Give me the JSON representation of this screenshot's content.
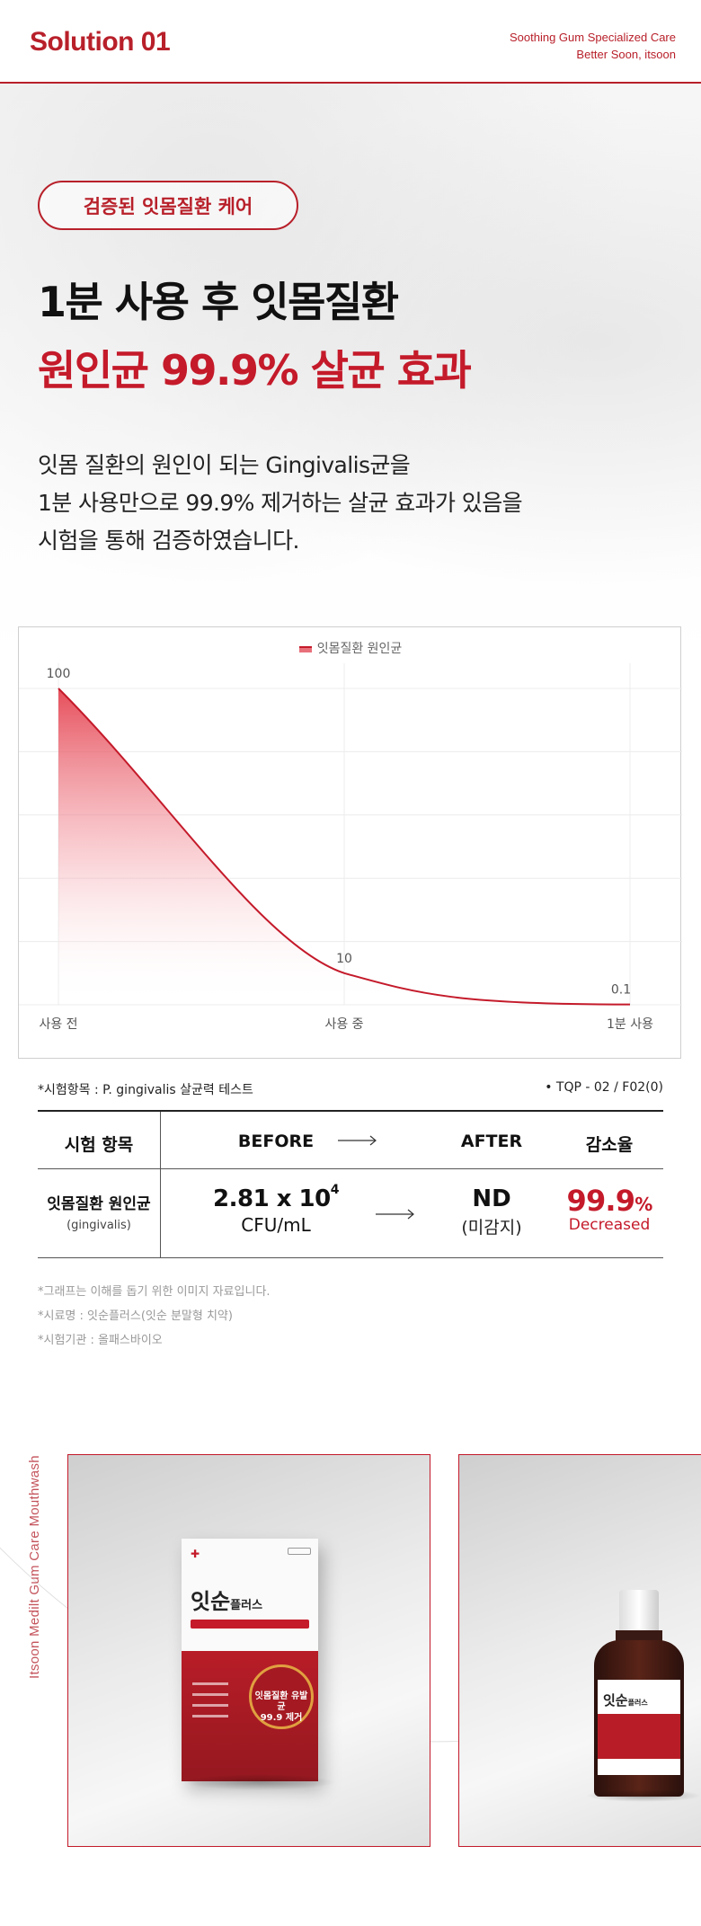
{
  "header": {
    "title": "Solution 01",
    "tagline_1": "Soothing Gum Specialized Care",
    "tagline_2": "Better Soon, itsoon"
  },
  "pill_label": "검증된 잇몸질환 케어",
  "headline": {
    "line1": "1분 사용 후 잇몸질환",
    "line2": "원인균 99.9% 살균 효과"
  },
  "description": [
    "잇몸 질환의 원인이 되는 Gingivalis균을",
    "1분 사용만으로 99.9% 제거하는 살균 효과가 있음을",
    "시험을 통해 검증하였습니다."
  ],
  "colors": {
    "accent": "#c41a2a",
    "accent_dark": "#b8202a"
  },
  "chart_data": {
    "type": "area",
    "title": "",
    "legend": [
      "잇몸질환 원인균"
    ],
    "legend_position": "top-center",
    "grid": true,
    "categories": [
      "사용 전",
      "사용 중",
      "1분 사용"
    ],
    "series": [
      {
        "name": "잇몸질환 원인균",
        "values": [
          100,
          10,
          0.1
        ]
      }
    ],
    "data_labels": [
      "100",
      "10",
      "0.1"
    ],
    "ylim": [
      0,
      100
    ],
    "xlabel": "",
    "ylabel": ""
  },
  "test_info": {
    "item": "*시험항목 : P. gingivalis 살균력 테스트",
    "code": "• TQP - 02 / F02(0)"
  },
  "table": {
    "headers": [
      "시험 항목",
      "BEFORE",
      "AFTER",
      "감소율"
    ],
    "row_label": "잇몸질환 원인균",
    "row_sub": "(gingivalis)",
    "before_value": "2.81 x 10",
    "before_exp": "4",
    "before_unit": "CFU/mL",
    "after_value": "ND",
    "after_unit": "(미감지)",
    "reduction_value": "99.9",
    "reduction_pct": "%",
    "reduction_label": "Decreased"
  },
  "notes": [
    "*그래프는 이해를 돕기 위한 이미지 자료입니다.",
    "*시료명 : 잇순플러스(잇순 분말형 치약)",
    "*시험기관 : 올패스바이오"
  ],
  "side_text": "Itsoon Medilt Gum Care Mouthwash",
  "product": {
    "brand": "잇순",
    "brand_suffix": "플러스",
    "badge_line1": "잇몸질환 유발균",
    "badge_line2": "99.9 제거"
  }
}
